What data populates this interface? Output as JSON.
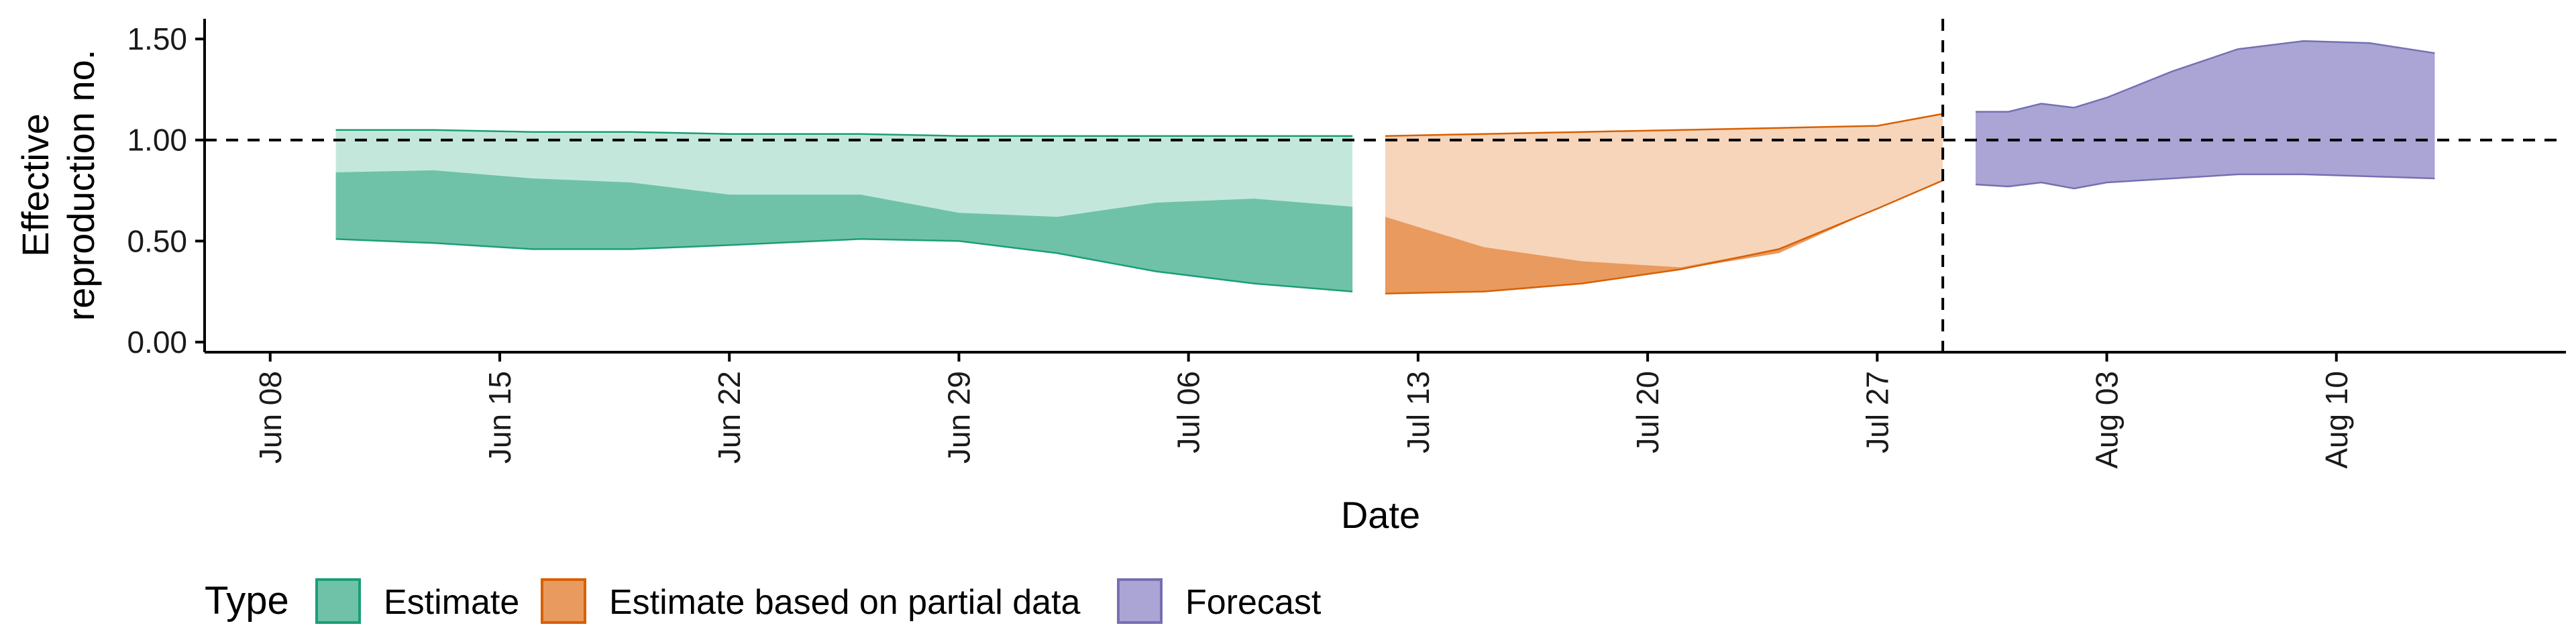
{
  "chart_data": {
    "type": "area",
    "xlabel": "Date",
    "ylabel_lines": [
      "Effective",
      "reproduction no."
    ],
    "ylim": [
      -0.05,
      1.6
    ],
    "yticks": [
      0,
      0.5,
      1,
      1.5
    ],
    "ytick_labels": [
      "0.00",
      "0.50",
      "1.00",
      "1.50"
    ],
    "xlim": [
      "2020-06-06",
      "2020-08-17"
    ],
    "xticks": [
      "2020-06-08",
      "2020-06-15",
      "2020-06-22",
      "2020-06-29",
      "2020-07-06",
      "2020-07-13",
      "2020-07-20",
      "2020-07-27",
      "2020-08-03",
      "2020-08-10"
    ],
    "xtick_labels": [
      "Jun 08",
      "Jun 15",
      "Jun 22",
      "Jun 29",
      "Jul 06",
      "Jul 13",
      "Jul 20",
      "Jul 27",
      "Aug 03",
      "Aug 10"
    ],
    "hline_y": 1.0,
    "vline_x": "2020-07-29",
    "legend": {
      "title": "Type",
      "position": "bottom",
      "entries": [
        {
          "label": "Estimate",
          "color": "#6fc2a8",
          "stroke": "#1b9e77"
        },
        {
          "label": "Estimate based on partial data",
          "color": "#e99a5e",
          "stroke": "#d95f02"
        },
        {
          "label": "Forecast",
          "color": "#aaa5d4",
          "stroke": "#7570b3"
        }
      ]
    },
    "series": [
      {
        "type_label": "Estimate",
        "color_inner": "#6fc2a8",
        "color_outer": "#c4e7dc",
        "stroke": "#1b9e77",
        "points": [
          {
            "x": "2020-06-10",
            "lower_90": 0.51,
            "lower_50": 0.51,
            "upper_50": 0.84,
            "upper_90": 1.05
          },
          {
            "x": "2020-06-13",
            "lower_90": 0.49,
            "lower_50": 0.49,
            "upper_50": 0.85,
            "upper_90": 1.05
          },
          {
            "x": "2020-06-16",
            "lower_90": 0.46,
            "lower_50": 0.46,
            "upper_50": 0.81,
            "upper_90": 1.04
          },
          {
            "x": "2020-06-19",
            "lower_90": 0.46,
            "lower_50": 0.46,
            "upper_50": 0.79,
            "upper_90": 1.04
          },
          {
            "x": "2020-06-22",
            "lower_90": 0.48,
            "lower_50": 0.48,
            "upper_50": 0.73,
            "upper_90": 1.03
          },
          {
            "x": "2020-06-26",
            "lower_90": 0.51,
            "lower_50": 0.51,
            "upper_50": 0.73,
            "upper_90": 1.03
          },
          {
            "x": "2020-06-29",
            "lower_90": 0.5,
            "lower_50": 0.5,
            "upper_50": 0.64,
            "upper_90": 1.02
          },
          {
            "x": "2020-07-02",
            "lower_90": 0.44,
            "lower_50": 0.44,
            "upper_50": 0.62,
            "upper_90": 1.02
          },
          {
            "x": "2020-07-05",
            "lower_90": 0.35,
            "lower_50": 0.35,
            "upper_50": 0.69,
            "upper_90": 1.02
          },
          {
            "x": "2020-07-08",
            "lower_90": 0.29,
            "lower_50": 0.29,
            "upper_50": 0.71,
            "upper_90": 1.02
          },
          {
            "x": "2020-07-11",
            "lower_90": 0.25,
            "lower_50": 0.25,
            "upper_50": 0.67,
            "upper_90": 1.02
          }
        ]
      },
      {
        "type_label": "Estimate based on partial data",
        "color_inner": "#e99a5e",
        "color_outer": "#f6d5bb",
        "stroke": "#d95f02",
        "points": [
          {
            "x": "2020-07-12",
            "lower_90": 0.24,
            "lower_50": 0.24,
            "upper_50": 0.62,
            "upper_90": 1.02
          },
          {
            "x": "2020-07-15",
            "lower_90": 0.25,
            "lower_50": 0.25,
            "upper_50": 0.47,
            "upper_90": 1.03
          },
          {
            "x": "2020-07-18",
            "lower_90": 0.29,
            "lower_50": 0.29,
            "upper_50": 0.4,
            "upper_90": 1.04
          },
          {
            "x": "2020-07-21",
            "lower_90": 0.36,
            "lower_50": 0.36,
            "upper_50": 0.37,
            "upper_90": 1.05
          },
          {
            "x": "2020-07-24",
            "lower_90": 0.46,
            "lower_50": 0.44,
            "upper_50": 0.46,
            "upper_90": 1.06
          },
          {
            "x": "2020-07-27",
            "lower_90": 0.66,
            "lower_50": 0.66,
            "upper_50": 0.66,
            "upper_90": 1.07
          },
          {
            "x": "2020-07-29",
            "lower_90": 0.8,
            "lower_50": 0.8,
            "upper_50": 0.8,
            "upper_90": 1.13
          }
        ]
      },
      {
        "type_label": "Forecast",
        "color_inner": "#aaa5d4",
        "color_outer": "#dcdaed",
        "stroke": "#7570b3",
        "points": [
          {
            "x": "2020-07-30",
            "lower_90": 0.78,
            "lower_50": 0.78,
            "upper_50": 1.14,
            "upper_90": 1.14
          },
          {
            "x": "2020-07-31",
            "lower_90": 0.77,
            "lower_50": 0.77,
            "upper_50": 1.14,
            "upper_90": 1.14
          },
          {
            "x": "2020-08-01",
            "lower_90": 0.79,
            "lower_50": 0.79,
            "upper_50": 1.18,
            "upper_90": 1.18
          },
          {
            "x": "2020-08-02",
            "lower_90": 0.76,
            "lower_50": 0.76,
            "upper_50": 1.16,
            "upper_90": 1.16
          },
          {
            "x": "2020-08-03",
            "lower_90": 0.79,
            "lower_50": 0.79,
            "upper_50": 1.21,
            "upper_90": 1.21
          },
          {
            "x": "2020-08-05",
            "lower_90": 0.81,
            "lower_50": 0.81,
            "upper_50": 1.34,
            "upper_90": 1.34
          },
          {
            "x": "2020-08-07",
            "lower_90": 0.83,
            "lower_50": 0.83,
            "upper_50": 1.45,
            "upper_90": 1.45
          },
          {
            "x": "2020-08-09",
            "lower_90": 0.83,
            "lower_50": 0.83,
            "upper_50": 1.49,
            "upper_90": 1.49
          },
          {
            "x": "2020-08-11",
            "lower_90": 0.82,
            "lower_50": 0.82,
            "upper_50": 1.48,
            "upper_90": 1.48
          },
          {
            "x": "2020-08-13",
            "lower_90": 0.81,
            "lower_50": 0.81,
            "upper_50": 1.43,
            "upper_90": 1.43
          }
        ]
      }
    ]
  }
}
